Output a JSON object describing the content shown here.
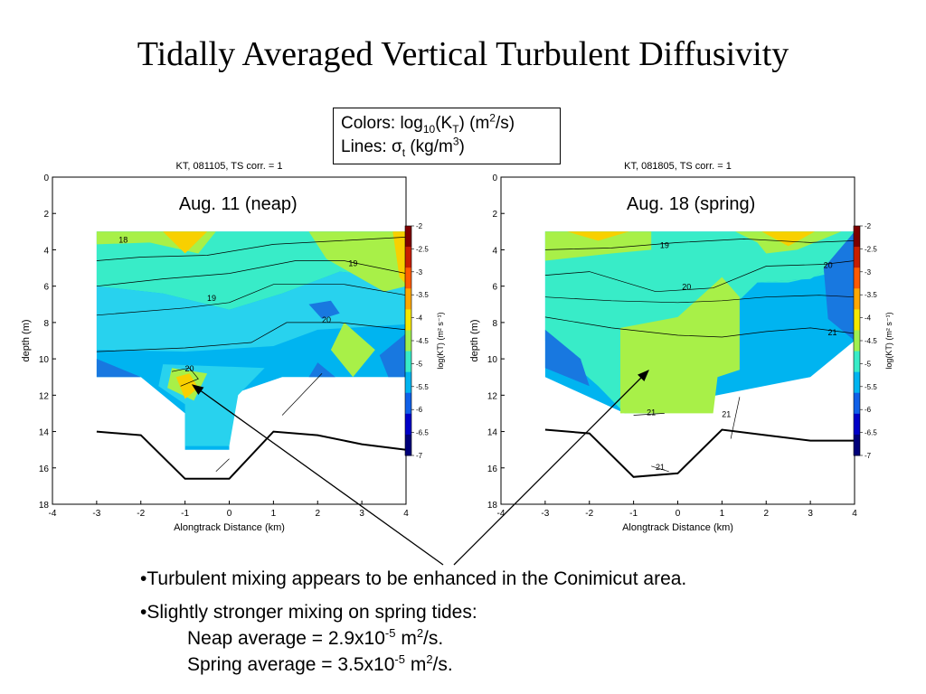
{
  "slide_title": "Tidally Averaged Vertical Turbulent Diffusivity",
  "legend_box": {
    "colors_prefix": "Colors: log",
    "colors_sub": "10",
    "colors_mid": "(K",
    "colors_sub2": "T",
    "colors_unit": ") (m",
    "colors_sup": "2",
    "colors_end": "/s)",
    "lines_prefix": "Lines: ",
    "lines_symbol": "σ",
    "lines_sub": "t",
    "lines_unit": " (kg/m",
    "lines_sup": "3",
    "lines_end": ")"
  },
  "bullets": {
    "b1": "•Turbulent mixing appears to be enhanced in the Conimicut area.",
    "b2": "•Slightly stronger mixing on spring tides:",
    "b3_a": "Neap average = 2.9x10",
    "b3_sup1": "-5",
    "b3_b": " m",
    "b3_sup2": "2",
    "b3_c": "/s.",
    "b4_a": "Spring average = 3.5x10",
    "b4_sup1": "-5",
    "b4_b": " m",
    "b4_sup2": "2",
    "b4_c": "/s."
  },
  "chart_data": [
    {
      "type": "heatmap",
      "title": "KT, 081105, TS corr. = 1",
      "annotation": "Aug. 11 (neap)",
      "xlabel": "Alongtrack Distance (km)",
      "ylabel": "depth (m)",
      "xlim": [
        -4,
        4
      ],
      "ylim": [
        18,
        0
      ],
      "x_ticks": [
        -4,
        -3,
        -2,
        -1,
        0,
        1,
        2,
        3,
        4
      ],
      "y_ticks": [
        0,
        2,
        4,
        6,
        8,
        10,
        12,
        14,
        16,
        18
      ],
      "colorbar_label": "log(KT) (m² s⁻¹)",
      "colorbar_ticks": [
        -2,
        -2.5,
        -3,
        -3.5,
        -4,
        -4.5,
        -5,
        -5.5,
        -6,
        -6.5,
        -7
      ],
      "contour_labels": [
        "18",
        "19",
        "19",
        "20",
        "20"
      ],
      "bottom_depth": {
        "x": [
          -3,
          -2,
          -1,
          0,
          1,
          2,
          3,
          4
        ],
        "depth": [
          14.0,
          14.2,
          16.6,
          16.6,
          14.0,
          14.2,
          14.7,
          15.0
        ]
      }
    },
    {
      "type": "heatmap",
      "title": "KT, 081805, TS corr. = 1",
      "annotation": "Aug. 18 (spring)",
      "xlabel": "Alongtrack Distance (km)",
      "ylabel": "depth (m)",
      "xlim": [
        -4,
        4
      ],
      "ylim": [
        18,
        0
      ],
      "x_ticks": [
        -4,
        -3,
        -2,
        -1,
        0,
        1,
        2,
        3,
        4
      ],
      "y_ticks": [
        0,
        2,
        4,
        6,
        8,
        10,
        12,
        14,
        16,
        18
      ],
      "colorbar_label": "log(KT) (m² s⁻¹)",
      "colorbar_ticks": [
        -2,
        -2.5,
        -3,
        -3.5,
        -4,
        -4.5,
        -5,
        -5.5,
        -6,
        -6.5,
        -7
      ],
      "contour_labels": [
        "19",
        "20",
        "20",
        "21",
        "21",
        "21",
        "21"
      ],
      "bottom_depth": {
        "x": [
          -3,
          -2,
          -1,
          0,
          1,
          2,
          3,
          4
        ],
        "depth": [
          13.9,
          14.1,
          16.5,
          16.3,
          13.9,
          14.2,
          14.5,
          14.5
        ]
      }
    }
  ],
  "colors": {
    "cmap": [
      "#7f0000",
      "#c81e00",
      "#ff5a00",
      "#ffa800",
      "#f5e800",
      "#a0f050",
      "#38ecc8",
      "#00b4f0",
      "#1060e8",
      "#0000c8",
      "#00007a"
    ],
    "teal": "#38ecc8",
    "mid_blue": "#00b4f0",
    "cyan": "#28d2ee",
    "lime": "#a8f048",
    "yellow": "#f8d000",
    "dark_blue": "#1878e0"
  }
}
